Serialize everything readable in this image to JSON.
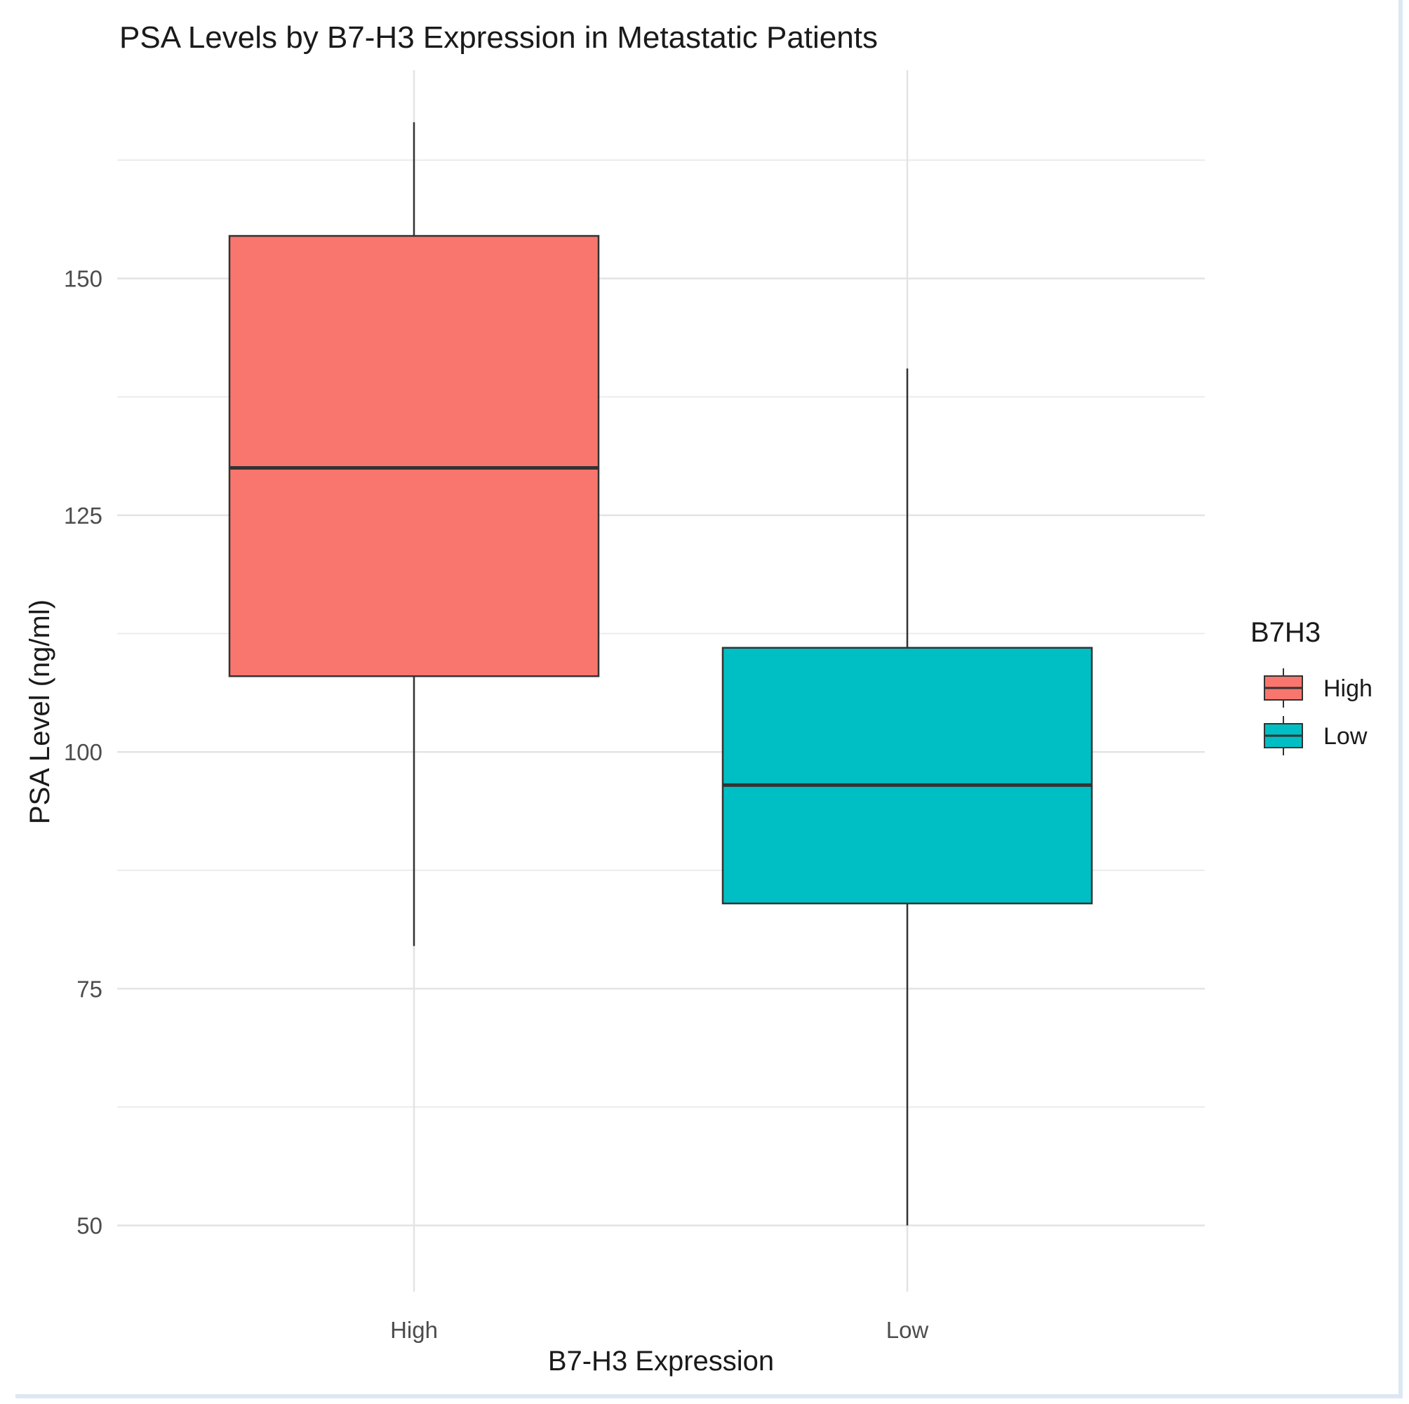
{
  "chart_data": {
    "type": "boxplot",
    "title": "PSA Levels by B7-H3 Expression in Metastatic Patients",
    "xlabel": "B7-H3 Expression",
    "ylabel": "PSA Level (ng/ml)",
    "categories": [
      "High",
      "Low"
    ],
    "series": [
      {
        "name": "High",
        "color": "#F8766D",
        "whisker_low": 79.5,
        "q1": 108,
        "median": 130,
        "q3": 154.5,
        "whisker_high": 166.5
      },
      {
        "name": "Low",
        "color": "#00BFC4",
        "whisker_low": 50,
        "q1": 84,
        "median": 96.5,
        "q3": 111,
        "whisker_high": 140.5
      }
    ],
    "yticks": [
      50,
      75,
      100,
      125,
      150
    ],
    "ylim": [
      43,
      172
    ],
    "grid": true,
    "legend": {
      "title": "B7H3",
      "position": "right",
      "entries": [
        "High",
        "Low"
      ]
    }
  }
}
